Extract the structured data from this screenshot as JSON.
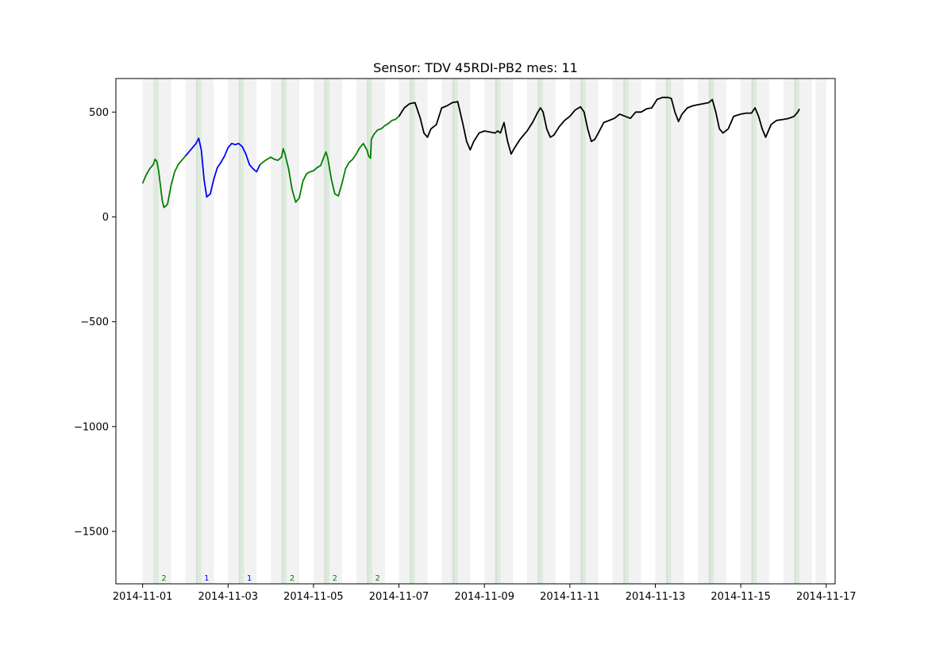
{
  "chart_data": {
    "type": "line",
    "title": "Sensor: TDV 45RDI-PB2 mes: 11",
    "xlabel": "",
    "ylabel": "",
    "xlim": [
      "2014-10-31T09:00",
      "2014-11-17T05:00"
    ],
    "ylim": [
      -1750,
      660
    ],
    "grid": false,
    "x_ticks": [
      "2014-11-01",
      "2014-11-03",
      "2014-11-05",
      "2014-11-07",
      "2014-11-09",
      "2014-11-11",
      "2014-11-13",
      "2014-11-15",
      "2014-11-17"
    ],
    "y_ticks": [
      500,
      0,
      -500,
      -1000,
      -1500
    ],
    "y_tick_labels": [
      "500",
      "0",
      "−500",
      "−1000",
      "−1500"
    ],
    "colors": {
      "group1": "#0000ff",
      "group2": "#008000",
      "other": "#000000",
      "band_grey": "#d3d3d3",
      "band_green": "#8fbc8f"
    },
    "grey_bands": [
      [
        "2014-11-01T00:00",
        "2014-11-01T06:00"
      ],
      [
        "2014-11-02T00:00",
        "2014-11-02T07:00"
      ],
      [
        "2014-11-03T00:00",
        "2014-11-03T07:00"
      ],
      [
        "2014-11-04T00:00",
        "2014-11-04T07:00"
      ],
      [
        "2014-11-05T00:00",
        "2014-11-05T07:00"
      ],
      [
        "2014-11-06T00:00",
        "2014-11-06T07:00"
      ],
      [
        "2014-11-07T00:00",
        "2014-11-07T07:00"
      ],
      [
        "2014-11-08T00:00",
        "2014-11-08T07:00"
      ],
      [
        "2014-11-09T00:00",
        "2014-11-09T07:00"
      ],
      [
        "2014-11-10T00:00",
        "2014-11-10T07:00"
      ],
      [
        "2014-11-11T00:00",
        "2014-11-11T07:00"
      ],
      [
        "2014-11-12T00:00",
        "2014-11-12T07:00"
      ],
      [
        "2014-11-13T00:00",
        "2014-11-13T07:00"
      ],
      [
        "2014-11-14T00:00",
        "2014-11-14T07:00"
      ],
      [
        "2014-11-15T00:00",
        "2014-11-15T07:00"
      ],
      [
        "2014-11-16T00:00",
        "2014-11-16T07:00"
      ],
      [
        "2014-11-16T18:00",
        "2014-11-17T00:00"
      ],
      [
        "2014-11-01T09:00",
        "2014-11-01T16:00"
      ],
      [
        "2014-11-02T09:00",
        "2014-11-02T16:00"
      ],
      [
        "2014-11-03T09:00",
        "2014-11-03T16:00"
      ],
      [
        "2014-11-04T09:00",
        "2014-11-04T16:00"
      ],
      [
        "2014-11-05T09:00",
        "2014-11-05T16:00"
      ],
      [
        "2014-11-06T09:00",
        "2014-11-06T16:00"
      ],
      [
        "2014-11-07T09:00",
        "2014-11-07T16:00"
      ],
      [
        "2014-11-08T09:00",
        "2014-11-08T16:00"
      ],
      [
        "2014-11-09T09:00",
        "2014-11-09T16:00"
      ],
      [
        "2014-11-10T09:00",
        "2014-11-10T16:00"
      ],
      [
        "2014-11-11T09:00",
        "2014-11-11T16:00"
      ],
      [
        "2014-11-12T09:00",
        "2014-11-12T16:00"
      ],
      [
        "2014-11-13T09:00",
        "2014-11-13T16:00"
      ],
      [
        "2014-11-14T09:00",
        "2014-11-14T16:00"
      ],
      [
        "2014-11-15T09:00",
        "2014-11-15T16:00"
      ],
      [
        "2014-11-16T09:00",
        "2014-11-16T16:00"
      ]
    ],
    "green_bands": [
      [
        "2014-11-01T06:00",
        "2014-11-01T09:00"
      ],
      [
        "2014-11-02T06:00",
        "2014-11-02T09:00"
      ],
      [
        "2014-11-03T06:00",
        "2014-11-03T09:00"
      ],
      [
        "2014-11-04T06:00",
        "2014-11-04T09:00"
      ],
      [
        "2014-11-05T06:00",
        "2014-11-05T09:00"
      ],
      [
        "2014-11-06T06:00",
        "2014-11-06T09:00"
      ],
      [
        "2014-11-07T06:00",
        "2014-11-07T09:00"
      ],
      [
        "2014-11-08T06:00",
        "2014-11-08T09:00"
      ],
      [
        "2014-11-09T06:00",
        "2014-11-09T09:00"
      ],
      [
        "2014-11-10T06:00",
        "2014-11-10T09:00"
      ],
      [
        "2014-11-11T06:00",
        "2014-11-11T09:00"
      ],
      [
        "2014-11-12T06:00",
        "2014-11-12T09:00"
      ],
      [
        "2014-11-13T06:00",
        "2014-11-13T09:00"
      ],
      [
        "2014-11-14T06:00",
        "2014-11-14T09:00"
      ],
      [
        "2014-11-15T06:00",
        "2014-11-15T09:00"
      ],
      [
        "2014-11-16T06:00",
        "2014-11-16T09:00"
      ]
    ],
    "series": [
      {
        "color": "green",
        "x": [
          "2014-11-01T00:00",
          "2014-11-01T02:00",
          "2014-11-01T04:00",
          "2014-11-01T06:00",
          "2014-11-01T07:00",
          "2014-11-01T08:00",
          "2014-11-01T09:00",
          "2014-11-01T10:00",
          "2014-11-01T11:00",
          "2014-11-01T12:00",
          "2014-11-01T14:00",
          "2014-11-01T16:00",
          "2014-11-01T18:00",
          "2014-11-01T20:00",
          "2014-11-01T22:00",
          "2014-11-02T00:00"
        ],
        "y": [
          160,
          200,
          230,
          250,
          275,
          265,
          220,
          150,
          80,
          45,
          60,
          150,
          215,
          250,
          270,
          290
        ]
      },
      {
        "color": "blue",
        "x": [
          "2014-11-02T00:00",
          "2014-11-02T03:00",
          "2014-11-02T06:00",
          "2014-11-02T07:30",
          "2014-11-02T09:00",
          "2014-11-02T10:30",
          "2014-11-02T12:00",
          "2014-11-02T14:00",
          "2014-11-02T16:00",
          "2014-11-02T18:00",
          "2014-11-02T20:00",
          "2014-11-02T22:00",
          "2014-11-03T00:00",
          "2014-11-03T02:00",
          "2014-11-03T04:00",
          "2014-11-03T06:00",
          "2014-11-03T08:00",
          "2014-11-03T10:00",
          "2014-11-03T12:00",
          "2014-11-03T14:00",
          "2014-11-03T16:00",
          "2014-11-03T18:00"
        ],
        "y": [
          290,
          320,
          350,
          375,
          320,
          180,
          95,
          110,
          180,
          235,
          260,
          290,
          330,
          350,
          345,
          350,
          335,
          300,
          250,
          230,
          215,
          250
        ]
      },
      {
        "color": "green",
        "x": [
          "2014-11-03T18:00",
          "2014-11-03T21:00",
          "2014-11-04T00:00",
          "2014-11-04T02:00",
          "2014-11-04T04:00",
          "2014-11-04T06:00",
          "2014-11-04T07:00",
          "2014-11-04T08:00",
          "2014-11-04T10:00",
          "2014-11-04T12:00",
          "2014-11-04T14:00",
          "2014-11-04T16:00",
          "2014-11-04T18:00",
          "2014-11-04T20:00",
          "2014-11-04T22:00",
          "2014-11-05T00:00",
          "2014-11-05T02:00",
          "2014-11-05T04:00",
          "2014-11-05T06:00",
          "2014-11-05T07:00",
          "2014-11-05T08:00",
          "2014-11-05T10:00",
          "2014-11-05T12:00",
          "2014-11-05T14:00",
          "2014-11-05T16:00",
          "2014-11-05T18:00",
          "2014-11-05T20:00",
          "2014-11-05T22:00",
          "2014-11-06T00:00",
          "2014-11-06T02:00",
          "2014-11-06T04:00",
          "2014-11-06T06:00",
          "2014-11-06T07:00",
          "2014-11-06T08:00",
          "2014-11-06T08:30",
          "2014-11-06T10:00",
          "2014-11-06T12:00",
          "2014-11-06T14:00",
          "2014-11-06T16:00",
          "2014-11-06T18:00",
          "2014-11-06T20:00",
          "2014-11-06T22:00",
          "2014-11-07T00:00"
        ],
        "y": [
          250,
          270,
          285,
          275,
          270,
          285,
          325,
          300,
          230,
          130,
          70,
          90,
          170,
          205,
          215,
          220,
          235,
          245,
          290,
          310,
          280,
          180,
          110,
          100,
          160,
          230,
          260,
          275,
          300,
          330,
          350,
          320,
          290,
          280,
          370,
          395,
          415,
          420,
          435,
          445,
          460,
          465,
          480
        ]
      },
      {
        "color": "black",
        "x": [
          "2014-11-07T00:00",
          "2014-11-07T03:00",
          "2014-11-07T06:00",
          "2014-11-07T09:00",
          "2014-11-07T12:00",
          "2014-11-07T14:00",
          "2014-11-07T16:00",
          "2014-11-07T18:00",
          "2014-11-07T21:00",
          "2014-11-08T00:00",
          "2014-11-08T03:00",
          "2014-11-08T06:00",
          "2014-11-08T09:00",
          "2014-11-08T12:00",
          "2014-11-08T14:00",
          "2014-11-08T16:00",
          "2014-11-08T18:00",
          "2014-11-08T21:00",
          "2014-11-09T00:00",
          "2014-11-09T03:00",
          "2014-11-09T06:00",
          "2014-11-09T07:30",
          "2014-11-09T09:00",
          "2014-11-09T11:00",
          "2014-11-09T13:00",
          "2014-11-09T15:00",
          "2014-11-09T17:00",
          "2014-11-09T20:00",
          "2014-11-10T00:00",
          "2014-11-10T03:00",
          "2014-11-10T06:00",
          "2014-11-10T07:30",
          "2014-11-10T09:00",
          "2014-11-10T11:00",
          "2014-11-10T13:00",
          "2014-11-10T15:00",
          "2014-11-10T18:00",
          "2014-11-10T21:00",
          "2014-11-11T00:00",
          "2014-11-11T03:00",
          "2014-11-11T06:00",
          "2014-11-11T08:00",
          "2014-11-11T10:00",
          "2014-11-11T12:00",
          "2014-11-11T14:00",
          "2014-11-11T16:00",
          "2014-11-11T19:00",
          "2014-11-11T22:00",
          "2014-11-12T01:00",
          "2014-11-12T04:00",
          "2014-11-12T07:00",
          "2014-11-12T10:00",
          "2014-11-12T13:00",
          "2014-11-12T16:00",
          "2014-11-12T19:00",
          "2014-11-12T22:00",
          "2014-11-13T01:00",
          "2014-11-13T04:00",
          "2014-11-13T07:00",
          "2014-11-13T09:00",
          "2014-11-13T11:00",
          "2014-11-13T13:00",
          "2014-11-13T15:00",
          "2014-11-13T18:00",
          "2014-11-13T21:00",
          "2014-11-14T00:00",
          "2014-11-14T03:00",
          "2014-11-14T06:00",
          "2014-11-14T08:00",
          "2014-11-14T10:00",
          "2014-11-14T12:00",
          "2014-11-14T14:00",
          "2014-11-14T17:00",
          "2014-11-14T20:00",
          "2014-11-15T00:00",
          "2014-11-15T03:00",
          "2014-11-15T06:00",
          "2014-11-15T08:00",
          "2014-11-15T10:00",
          "2014-11-15T12:00",
          "2014-11-15T14:00",
          "2014-11-15T17:00",
          "2014-11-15T20:00",
          "2014-11-16T00:00",
          "2014-11-16T03:00",
          "2014-11-16T06:00",
          "2014-11-16T08:00",
          "2014-11-16T09:00"
        ],
        "y": [
          480,
          520,
          540,
          545,
          470,
          400,
          380,
          420,
          440,
          520,
          530,
          545,
          550,
          440,
          360,
          320,
          360,
          400,
          410,
          405,
          400,
          410,
          400,
          450,
          360,
          300,
          330,
          370,
          410,
          450,
          500,
          520,
          500,
          420,
          380,
          390,
          430,
          460,
          480,
          510,
          525,
          500,
          420,
          360,
          370,
          400,
          450,
          460,
          470,
          490,
          480,
          470,
          500,
          500,
          515,
          520,
          560,
          570,
          570,
          565,
          500,
          455,
          490,
          520,
          530,
          535,
          540,
          545,
          560,
          500,
          420,
          400,
          420,
          480,
          490,
          495,
          495,
          520,
          480,
          420,
          380,
          440,
          460,
          465,
          470,
          480,
          500,
          515
        ]
      }
    ],
    "annotations": [
      {
        "x": "2014-11-01T12:00",
        "text": "2",
        "color": "green"
      },
      {
        "x": "2014-11-02T12:00",
        "text": "1",
        "color": "blue"
      },
      {
        "x": "2014-11-03T12:00",
        "text": "1",
        "color": "blue"
      },
      {
        "x": "2014-11-04T12:00",
        "text": "2",
        "color": "green"
      },
      {
        "x": "2014-11-05T12:00",
        "text": "2",
        "color": "green"
      },
      {
        "x": "2014-11-06T12:00",
        "text": "2",
        "color": "green"
      }
    ]
  }
}
